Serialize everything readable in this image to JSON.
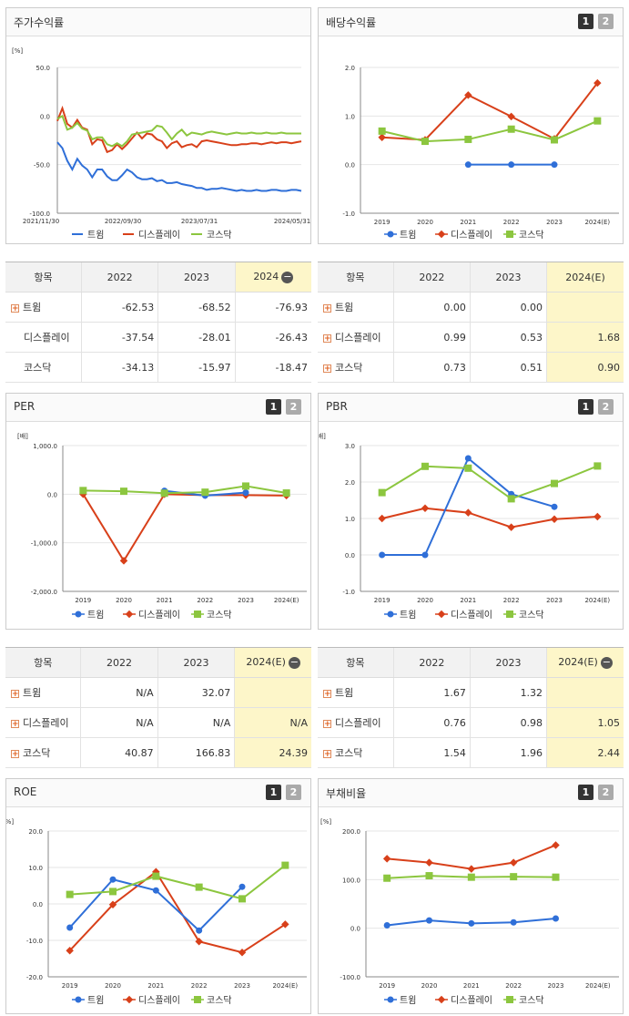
{
  "colors": {
    "s1": "#2f6fd8",
    "s2": "#d8401a",
    "s3": "#8cc63f"
  },
  "legend": [
    "트윔",
    "디스플레이",
    "코스닥"
  ],
  "panels": {
    "stock": {
      "title": "주가수익률"
    },
    "div": {
      "title": "배당수익률"
    },
    "per": {
      "title": "PER"
    },
    "pbr": {
      "title": "PBR"
    },
    "roe": {
      "title": "ROE"
    },
    "debt": {
      "title": "부채비율"
    }
  },
  "page_buttons": [
    "1",
    "2"
  ],
  "tables": {
    "t1": {
      "headers": [
        "항목",
        "2022",
        "2023",
        "2024"
      ],
      "rows": [
        {
          "label": "트윔",
          "plus": true,
          "values": [
            "-62.53",
            "-68.52",
            "-76.93"
          ]
        },
        {
          "label": "디스플레이",
          "plus": false,
          "values": [
            "-37.54",
            "-28.01",
            "-26.43"
          ]
        },
        {
          "label": "코스닥",
          "plus": false,
          "values": [
            "-34.13",
            "-15.97",
            "-18.47"
          ]
        }
      ]
    },
    "t2": {
      "headers": [
        "항목",
        "2022",
        "2023",
        "2024(E)"
      ],
      "rows": [
        {
          "label": "트윔",
          "plus": true,
          "values": [
            "0.00",
            "0.00",
            ""
          ]
        },
        {
          "label": "디스플레이",
          "plus": true,
          "values": [
            "0.99",
            "0.53",
            "1.68"
          ]
        },
        {
          "label": "코스닥",
          "plus": true,
          "values": [
            "0.73",
            "0.51",
            "0.90"
          ]
        }
      ]
    },
    "t3": {
      "headers": [
        "항목",
        "2022",
        "2023",
        "2024(E)"
      ],
      "rows": [
        {
          "label": "트윔",
          "plus": true,
          "values": [
            "N/A",
            "32.07",
            ""
          ]
        },
        {
          "label": "디스플레이",
          "plus": true,
          "values": [
            "N/A",
            "N/A",
            "N/A"
          ]
        },
        {
          "label": "코스닥",
          "plus": true,
          "values": [
            "40.87",
            "166.83",
            "24.39"
          ]
        }
      ]
    },
    "t4": {
      "headers": [
        "항목",
        "2022",
        "2023",
        "2024(E)"
      ],
      "rows": [
        {
          "label": "트윔",
          "plus": true,
          "values": [
            "1.67",
            "1.32",
            ""
          ]
        },
        {
          "label": "디스플레이",
          "plus": true,
          "values": [
            "0.76",
            "0.98",
            "1.05"
          ]
        },
        {
          "label": "코스닥",
          "plus": true,
          "values": [
            "1.54",
            "1.96",
            "2.44"
          ]
        }
      ]
    }
  },
  "chart_data": [
    {
      "id": "stock",
      "type": "line",
      "title": "주가수익률",
      "unit": "[%]",
      "ylim": [
        -100,
        50
      ],
      "yticks": [
        "50.0",
        "0.0",
        "-50.0",
        "-100.0"
      ],
      "ytick_values": [
        50,
        0,
        -50,
        -100
      ],
      "xlabels": [
        "2021/11/30",
        "2022/09/30",
        "2023/07/31",
        "2024/05/31"
      ],
      "n": 50,
      "series": [
        {
          "name": "트윔",
          "values": [
            -27,
            -33,
            -46,
            -55,
            -44,
            -51,
            -55,
            -63,
            -55,
            -55,
            -62,
            -66,
            -66,
            -61,
            -55,
            -58,
            -63,
            -65,
            -65,
            -64,
            -67,
            -66,
            -69,
            -69,
            -68,
            -70,
            -71,
            -72,
            -74,
            -74,
            -76,
            -75,
            -75,
            -74,
            -75,
            -76,
            -77,
            -76,
            -77,
            -77,
            -76,
            -77,
            -77,
            -76,
            -76,
            -77,
            -77,
            -76,
            -76,
            -77
          ]
        },
        {
          "name": "디스플레이",
          "values": [
            -5,
            8,
            -8,
            -12,
            -4,
            -12,
            -14,
            -29,
            -24,
            -25,
            -37,
            -35,
            -29,
            -34,
            -29,
            -23,
            -17,
            -23,
            -18,
            -19,
            -24,
            -26,
            -33,
            -28,
            -26,
            -32,
            -30,
            -29,
            -32,
            -26,
            -25,
            -26,
            -27,
            -28,
            -29,
            -30,
            -30,
            -29,
            -29,
            -28,
            -28,
            -29,
            -28,
            -27,
            -28,
            -27,
            -27,
            -28,
            -27,
            -26
          ]
        },
        {
          "name": "코스닥",
          "values": [
            -3,
            0,
            -14,
            -12,
            -7,
            -13,
            -15,
            -24,
            -22,
            -22,
            -29,
            -31,
            -28,
            -31,
            -26,
            -19,
            -18,
            -17,
            -16,
            -15,
            -10,
            -11,
            -17,
            -24,
            -18,
            -14,
            -20,
            -17,
            -18,
            -19,
            -17,
            -16,
            -17,
            -18,
            -19,
            -18,
            -17,
            -18,
            -18,
            -17,
            -18,
            -18,
            -17,
            -18,
            -18,
            -17,
            -18,
            -18,
            -18,
            -18
          ]
        }
      ]
    },
    {
      "id": "div",
      "type": "line",
      "title": "배당수익률",
      "categories": [
        "2019",
        "2020",
        "2021",
        "2022",
        "2023",
        "2024(E)"
      ],
      "ylim": [
        -1,
        2
      ],
      "yticks": [
        "2.0",
        "1.0",
        "0.0",
        "-1.0"
      ],
      "ytick_values": [
        2,
        1,
        0,
        -1
      ],
      "series": [
        {
          "name": "트윔",
          "values": [
            null,
            null,
            0.0,
            0.0,
            0.0,
            null
          ]
        },
        {
          "name": "디스플레이",
          "values": [
            0.56,
            0.51,
            1.43,
            0.99,
            0.53,
            1.68
          ]
        },
        {
          "name": "코스닥",
          "values": [
            0.69,
            0.48,
            0.52,
            0.73,
            0.51,
            0.9
          ]
        }
      ]
    },
    {
      "id": "per",
      "type": "line",
      "title": "PER",
      "unit": "[배]",
      "categories": [
        "2019",
        "2020",
        "2021",
        "2022",
        "2023",
        "2024(E)"
      ],
      "ylim": [
        -2000,
        1000
      ],
      "yticks": [
        "1,000.0",
        "0.0",
        "-1,000.0",
        "-2,000.0"
      ],
      "ytick_values": [
        1000,
        0,
        -1000,
        -2000
      ],
      "series": [
        {
          "name": "트윔",
          "values": [
            null,
            null,
            70,
            -30,
            32.07,
            null
          ]
        },
        {
          "name": "디스플레이",
          "values": [
            0,
            -1370,
            0,
            -20,
            -20,
            -30
          ]
        },
        {
          "name": "코스닥",
          "values": [
            75,
            60,
            20,
            40.87,
            166.83,
            24.39
          ]
        }
      ]
    },
    {
      "id": "pbr",
      "type": "line",
      "title": "PBR",
      "unit": "[배]",
      "categories": [
        "2019",
        "2020",
        "2021",
        "2022",
        "2023",
        "2024(E)"
      ],
      "ylim": [
        -1,
        3
      ],
      "yticks": [
        "3.0",
        "2.0",
        "1.0",
        "0.0",
        "-1.0"
      ],
      "ytick_values": [
        3,
        2,
        1,
        0,
        -1
      ],
      "series": [
        {
          "name": "트윔",
          "values": [
            0.0,
            0.0,
            2.65,
            1.67,
            1.32,
            null
          ]
        },
        {
          "name": "디스플레이",
          "values": [
            1.0,
            1.28,
            1.16,
            0.76,
            0.98,
            1.05
          ]
        },
        {
          "name": "코스닥",
          "values": [
            1.71,
            2.43,
            2.38,
            1.54,
            1.96,
            2.44
          ]
        }
      ]
    },
    {
      "id": "roe",
      "type": "line",
      "title": "ROE",
      "unit": "[%]",
      "categories": [
        "2019",
        "2020",
        "2021",
        "2022",
        "2023",
        "2024(E)"
      ],
      "ylim": [
        -20,
        20
      ],
      "yticks": [
        "20.0",
        "10.0",
        "0.0",
        "-10.0",
        "-20.0"
      ],
      "ytick_values": [
        20,
        10,
        0,
        -10,
        -20
      ],
      "series": [
        {
          "name": "트윔",
          "values": [
            -6.5,
            6.7,
            3.7,
            -7.3,
            4.7,
            null
          ]
        },
        {
          "name": "디스플레이",
          "values": [
            -12.8,
            -0.2,
            8.8,
            -10.3,
            -13.3,
            -5.6
          ]
        },
        {
          "name": "코스닥",
          "values": [
            2.6,
            3.4,
            7.6,
            4.6,
            1.4,
            10.6
          ]
        }
      ]
    },
    {
      "id": "debt",
      "type": "line",
      "title": "부채비율",
      "unit": "[%]",
      "categories": [
        "2019",
        "2020",
        "2021",
        "2022",
        "2023",
        "2024(E)"
      ],
      "ylim": [
        -100,
        200
      ],
      "yticks": [
        "200.0",
        "100.0",
        "0.0",
        "-100.0"
      ],
      "ytick_values": [
        200,
        100,
        0,
        -100
      ],
      "series": [
        {
          "name": "트윔",
          "values": [
            6,
            16,
            10,
            12,
            20,
            null
          ]
        },
        {
          "name": "디스플레이",
          "values": [
            143,
            135,
            122,
            135,
            171,
            null
          ]
        },
        {
          "name": "코스닥",
          "values": [
            103,
            108,
            105,
            106,
            105,
            null
          ]
        }
      ]
    }
  ]
}
